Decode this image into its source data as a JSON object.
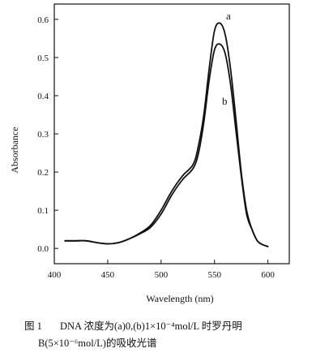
{
  "chart_data": {
    "type": "line",
    "xlabel": "Wavelength (nm)",
    "ylabel": "Absorbance",
    "xlim": [
      400,
      620
    ],
    "ylim": [
      -0.04,
      0.64
    ],
    "x_ticks": [
      400,
      450,
      500,
      550,
      600
    ],
    "y_ticks": [
      0.0,
      0.1,
      0.2,
      0.3,
      0.4,
      0.5,
      0.6
    ],
    "x_tick_labels": [
      "400",
      "450",
      "500",
      "550",
      "600"
    ],
    "y_tick_labels": [
      "0.0",
      "0.1",
      "0.2",
      "0.3",
      "0.4",
      "0.5",
      "0.6"
    ],
    "grid": false,
    "series": [
      {
        "name": "a",
        "x": [
          410,
          420,
          430,
          440,
          450,
          460,
          470,
          480,
          490,
          500,
          510,
          520,
          530,
          535,
          540,
          545,
          550,
          555,
          560,
          565,
          570,
          575,
          580,
          585,
          590,
          595,
          600
        ],
        "y": [
          0.02,
          0.02,
          0.02,
          0.015,
          0.012,
          0.015,
          0.025,
          0.04,
          0.06,
          0.1,
          0.15,
          0.19,
          0.22,
          0.27,
          0.35,
          0.47,
          0.57,
          0.59,
          0.56,
          0.47,
          0.34,
          0.2,
          0.1,
          0.05,
          0.02,
          0.01,
          0.005
        ]
      },
      {
        "name": "b",
        "x": [
          410,
          420,
          430,
          440,
          450,
          460,
          470,
          480,
          490,
          500,
          510,
          520,
          530,
          535,
          540,
          545,
          550,
          555,
          560,
          565,
          570,
          575,
          580,
          585,
          590,
          595,
          600
        ],
        "y": [
          0.02,
          0.02,
          0.02,
          0.015,
          0.012,
          0.015,
          0.025,
          0.038,
          0.055,
          0.09,
          0.14,
          0.18,
          0.21,
          0.25,
          0.33,
          0.44,
          0.52,
          0.535,
          0.51,
          0.43,
          0.31,
          0.19,
          0.09,
          0.05,
          0.02,
          0.01,
          0.005
        ]
      }
    ]
  },
  "caption": {
    "figure_number": "图 1",
    "line1": "DNA 浓度为(a)0,(b)1×10⁻⁴mol/L 时罗丹明",
    "line2": "B(5×10⁻⁶mol/L)的吸收光谱"
  }
}
